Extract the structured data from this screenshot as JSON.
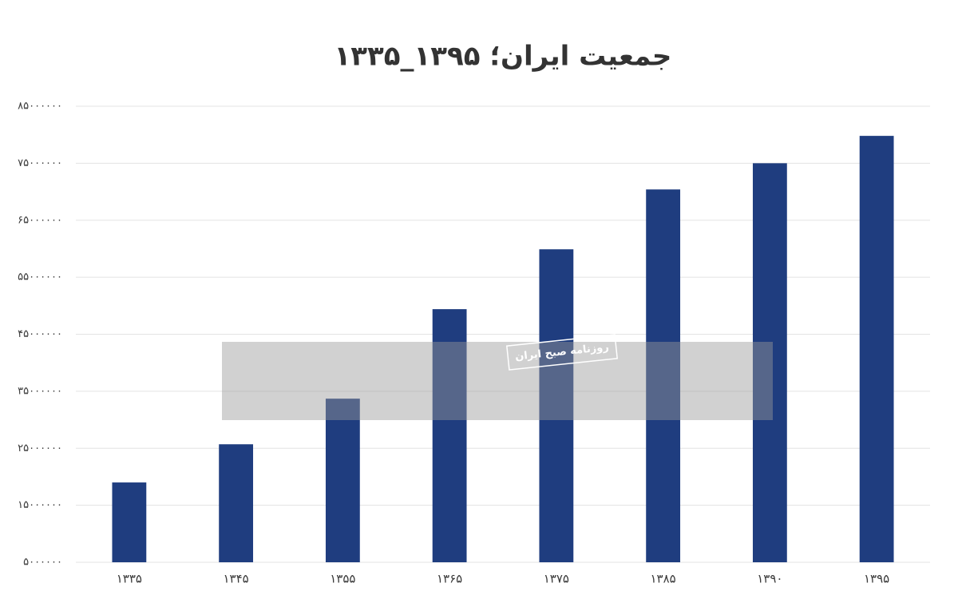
{
  "chart_data": {
    "type": "bar",
    "title": "جمعیت ایران؛ ۱۳۹۵_۱۳۳۵",
    "watermark": "روزنامه صبح ایران",
    "categories": [
      "۱۳۳۵",
      "۱۳۴۵",
      "۱۳۵۵",
      "۱۳۶۵",
      "۱۳۷۵",
      "۱۳۸۵",
      "۱۳۹۰",
      "۱۳۹۵"
    ],
    "values": [
      19000000,
      25700000,
      33700000,
      49400000,
      59900000,
      70400000,
      75000000,
      79800000
    ],
    "color": "#1f3d7f",
    "ylim": [
      5000000,
      85000000
    ],
    "yticks": [
      {
        "value": 5000000,
        "label": "۵۰۰۰۰۰۰"
      },
      {
        "value": 15000000,
        "label": "۱۵۰۰۰۰۰۰"
      },
      {
        "value": 25000000,
        "label": "۲۵۰۰۰۰۰۰"
      },
      {
        "value": 35000000,
        "label": "۳۵۰۰۰۰۰۰"
      },
      {
        "value": 45000000,
        "label": "۴۵۰۰۰۰۰۰"
      },
      {
        "value": 55000000,
        "label": "۵۵۰۰۰۰۰۰"
      },
      {
        "value": 65000000,
        "label": "۶۵۰۰۰۰۰۰"
      },
      {
        "value": 75000000,
        "label": "۷۵۰۰۰۰۰۰"
      },
      {
        "value": 85000000,
        "label": "۸۵۰۰۰۰۰۰"
      }
    ],
    "grid": true
  }
}
